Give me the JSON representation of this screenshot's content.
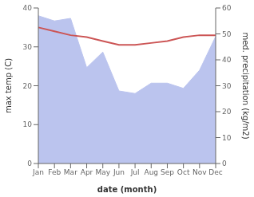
{
  "chart_data": {
    "type": "line",
    "xlabel": "date (month)",
    "ylabel": "max temp (C)",
    "y2label": "med. precipitation (kg/m2)",
    "categories": [
      "Jan",
      "Feb",
      "Mar",
      "Apr",
      "May",
      "Jun",
      "Jul",
      "Aug",
      "Sep",
      "Oct",
      "Nov",
      "Dec"
    ],
    "series": [
      {
        "type": "area",
        "axis": "y2",
        "color": "#bbc4ee",
        "values": [
          57.0,
          55.0,
          56.0,
          37.0,
          43.0,
          28.0,
          27.0,
          31.0,
          31.0,
          29.0,
          36.0,
          49.0
        ]
      },
      {
        "type": "line",
        "axis": "y",
        "color": "#cc5555",
        "values": [
          35.0,
          34.0,
          33.0,
          32.5,
          31.5,
          30.5,
          30.5,
          31.0,
          31.5,
          32.5,
          33.0,
          33.0
        ]
      }
    ],
    "ylim": [
      0,
      40
    ],
    "yticks": [
      0,
      10,
      20,
      30,
      40
    ],
    "y2lim": [
      0,
      60
    ],
    "y2ticks": [
      0,
      10,
      20,
      30,
      40,
      50,
      60
    ],
    "grid": false
  }
}
